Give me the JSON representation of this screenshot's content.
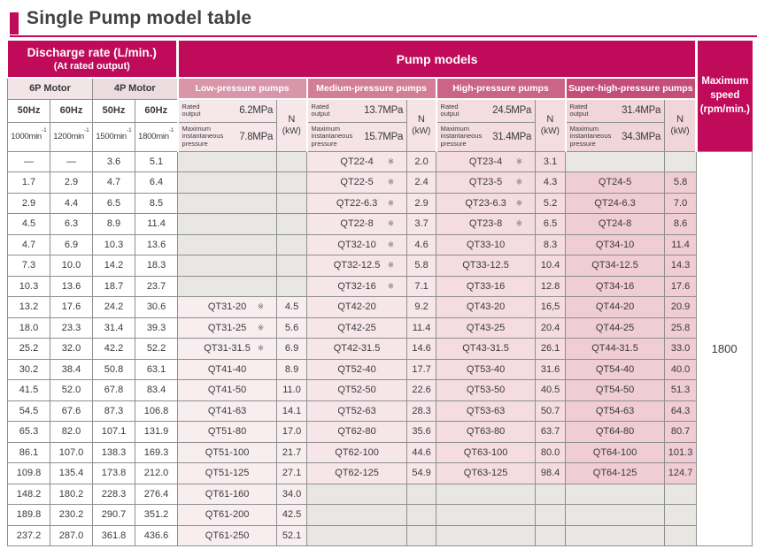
{
  "title": "Single Pump model table",
  "colors": {
    "brand_magenta": "#c00a5a",
    "category_low": "#d995aa",
    "category_medium": "#d37e97",
    "category_high": "#cb6587",
    "category_super": "#c54e79",
    "empty_cell_gray": "#e9e7e4"
  },
  "header": {
    "discharge_title": "Discharge rate (L/min.)",
    "discharge_subtitle": "(At rated output)",
    "pump_models": "Pump models",
    "max_speed": "Maximum\nspeed\n(rpm/min.)",
    "motors": [
      "6P Motor",
      "4P Motor"
    ],
    "freqs": [
      "50Hz",
      "60Hz",
      "50Hz",
      "60Hz"
    ],
    "speeds": [
      "1000min",
      "1200min",
      "1500min",
      "1800min"
    ],
    "sup": "-1",
    "rated_label": "Rated\noutput",
    "max_label": "Maximum\ninstantaneous\npressure",
    "n_label": "N",
    "kw_label": "(kW)",
    "categories": [
      {
        "label": "Low-pressure pumps",
        "rated": "6.2MPa",
        "max": "7.8MPa"
      },
      {
        "label": "Medium-pressure pumps",
        "rated": "13.7MPa",
        "max": "15.7MPa"
      },
      {
        "label": "High-pressure pumps",
        "rated": "24.5MPa",
        "max": "31.4MPa"
      },
      {
        "label": "Super-high-pressure pumps",
        "rated": "31.4MPa",
        "max": "34.3MPa"
      }
    ]
  },
  "max_speed_value": "1800",
  "rows": [
    {
      "discharge": [
        "—",
        "—",
        "3.6",
        "5.1"
      ],
      "pumps": [
        {
          "model": "",
          "note": "",
          "kw": ""
        },
        {
          "model": "QT22-4",
          "note": "※",
          "kw": "2.0"
        },
        {
          "model": "QT23-4",
          "note": "※",
          "kw": "3.1"
        },
        {
          "model": "",
          "note": "",
          "kw": ""
        }
      ]
    },
    {
      "discharge": [
        "1.7",
        "2.9",
        "4.7",
        "6.4"
      ],
      "pumps": [
        {
          "model": "",
          "note": "",
          "kw": ""
        },
        {
          "model": "QT22-5",
          "note": "※",
          "kw": "2.4"
        },
        {
          "model": "QT23-5",
          "note": "※",
          "kw": "4.3"
        },
        {
          "model": "QT24-5",
          "note": "",
          "kw": "5.8"
        }
      ]
    },
    {
      "discharge": [
        "2.9",
        "4.4",
        "6.5",
        "8.5"
      ],
      "pumps": [
        {
          "model": "",
          "note": "",
          "kw": ""
        },
        {
          "model": "QT22-6.3",
          "note": "※",
          "kw": "2.9"
        },
        {
          "model": "QT23-6.3",
          "note": "※",
          "kw": "5.2"
        },
        {
          "model": "QT24-6.3",
          "note": "",
          "kw": "7.0"
        }
      ]
    },
    {
      "discharge": [
        "4.5",
        "6.3",
        "8.9",
        "11.4"
      ],
      "pumps": [
        {
          "model": "",
          "note": "",
          "kw": ""
        },
        {
          "model": "QT22-8",
          "note": "※",
          "kw": "3.7"
        },
        {
          "model": "QT23-8",
          "note": "※",
          "kw": "6.5"
        },
        {
          "model": "QT24-8",
          "note": "",
          "kw": "8.6"
        }
      ]
    },
    {
      "discharge": [
        "4.7",
        "6.9",
        "10.3",
        "13.6"
      ],
      "pumps": [
        {
          "model": "",
          "note": "",
          "kw": ""
        },
        {
          "model": "QT32-10",
          "note": "※",
          "kw": "4.6"
        },
        {
          "model": "QT33-10",
          "note": "",
          "kw": "8.3"
        },
        {
          "model": "QT34-10",
          "note": "",
          "kw": "11.4"
        }
      ]
    },
    {
      "discharge": [
        "7.3",
        "10.0",
        "14.2",
        "18.3"
      ],
      "pumps": [
        {
          "model": "",
          "note": "",
          "kw": ""
        },
        {
          "model": "QT32-12.5",
          "note": "※",
          "kw": "5.8"
        },
        {
          "model": "QT33-12.5",
          "note": "",
          "kw": "10.4"
        },
        {
          "model": "QT34-12.5",
          "note": "",
          "kw": "14.3"
        }
      ]
    },
    {
      "discharge": [
        "10.3",
        "13.6",
        "18.7",
        "23.7"
      ],
      "pumps": [
        {
          "model": "",
          "note": "",
          "kw": ""
        },
        {
          "model": "QT32-16",
          "note": "※",
          "kw": "7.1"
        },
        {
          "model": "QT33-16",
          "note": "",
          "kw": "12.8"
        },
        {
          "model": "QT34-16",
          "note": "",
          "kw": "17.6"
        }
      ]
    },
    {
      "discharge": [
        "13.2",
        "17.6",
        "24.2",
        "30.6"
      ],
      "pumps": [
        {
          "model": "QT31-20",
          "note": "※",
          "kw": "4.5"
        },
        {
          "model": "QT42-20",
          "note": "",
          "kw": "9.2"
        },
        {
          "model": "QT43-20",
          "note": "",
          "kw": "16,5"
        },
        {
          "model": "QT44-20",
          "note": "",
          "kw": "20.9"
        }
      ]
    },
    {
      "discharge": [
        "18.0",
        "23.3",
        "31.4",
        "39.3"
      ],
      "pumps": [
        {
          "model": "QT31-25",
          "note": "※",
          "kw": "5.6"
        },
        {
          "model": "QT42-25",
          "note": "",
          "kw": "11.4"
        },
        {
          "model": "QT43-25",
          "note": "",
          "kw": "20.4"
        },
        {
          "model": "QT44-25",
          "note": "",
          "kw": "25.8"
        }
      ]
    },
    {
      "discharge": [
        "25.2",
        "32.0",
        "42.2",
        "52.2"
      ],
      "pumps": [
        {
          "model": "QT31-31.5",
          "note": "※",
          "kw": "6.9"
        },
        {
          "model": "QT42-31.5",
          "note": "",
          "kw": "14.6"
        },
        {
          "model": "QT43-31.5",
          "note": "",
          "kw": "26.1"
        },
        {
          "model": "QT44-31.5",
          "note": "",
          "kw": "33.0"
        }
      ]
    },
    {
      "discharge": [
        "30.2",
        "38.4",
        "50.8",
        "63.1"
      ],
      "pumps": [
        {
          "model": "QT41-40",
          "note": "",
          "kw": "8.9"
        },
        {
          "model": "QT52-40",
          "note": "",
          "kw": "17.7"
        },
        {
          "model": "QT53-40",
          "note": "",
          "kw": "31.6"
        },
        {
          "model": "QT54-40",
          "note": "",
          "kw": "40.0"
        }
      ]
    },
    {
      "discharge": [
        "41.5",
        "52.0",
        "67.8",
        "83.4"
      ],
      "pumps": [
        {
          "model": "QT41-50",
          "note": "",
          "kw": "11.0"
        },
        {
          "model": "QT52-50",
          "note": "",
          "kw": "22.6"
        },
        {
          "model": "QT53-50",
          "note": "",
          "kw": "40.5"
        },
        {
          "model": "QT54-50",
          "note": "",
          "kw": "51.3"
        }
      ]
    },
    {
      "discharge": [
        "54.5",
        "67.6",
        "87.3",
        "106.8"
      ],
      "pumps": [
        {
          "model": "QT41-63",
          "note": "",
          "kw": "14.1"
        },
        {
          "model": "QT52-63",
          "note": "",
          "kw": "28.3"
        },
        {
          "model": "QT53-63",
          "note": "",
          "kw": "50.7"
        },
        {
          "model": "QT54-63",
          "note": "",
          "kw": "64.3"
        }
      ]
    },
    {
      "discharge": [
        "65.3",
        "82.0",
        "107.1",
        "131.9"
      ],
      "pumps": [
        {
          "model": "QT51-80",
          "note": "",
          "kw": "17.0"
        },
        {
          "model": "QT62-80",
          "note": "",
          "kw": "35.6"
        },
        {
          "model": "QT63-80",
          "note": "",
          "kw": "63.7"
        },
        {
          "model": "QT64-80",
          "note": "",
          "kw": "80.7"
        }
      ]
    },
    {
      "discharge": [
        "86.1",
        "107.0",
        "138.3",
        "169.3"
      ],
      "pumps": [
        {
          "model": "QT51-100",
          "note": "",
          "kw": "21.7"
        },
        {
          "model": "QT62-100",
          "note": "",
          "kw": "44.6"
        },
        {
          "model": "QT63-100",
          "note": "",
          "kw": "80.0"
        },
        {
          "model": "QT64-100",
          "note": "",
          "kw": "101.3"
        }
      ]
    },
    {
      "discharge": [
        "109.8",
        "135.4",
        "173.8",
        "212.0"
      ],
      "pumps": [
        {
          "model": "QT51-125",
          "note": "",
          "kw": "27.1"
        },
        {
          "model": "QT62-125",
          "note": "",
          "kw": "54.9"
        },
        {
          "model": "QT63-125",
          "note": "",
          "kw": "98.4"
        },
        {
          "model": "QT64-125",
          "note": "",
          "kw": "124.7"
        }
      ]
    },
    {
      "discharge": [
        "148.2",
        "180.2",
        "228.3",
        "276.4"
      ],
      "pumps": [
        {
          "model": "QT61-160",
          "note": "",
          "kw": "34.0"
        },
        {
          "model": "",
          "note": "",
          "kw": ""
        },
        {
          "model": "",
          "note": "",
          "kw": ""
        },
        {
          "model": "",
          "note": "",
          "kw": ""
        }
      ]
    },
    {
      "discharge": [
        "189.8",
        "230.2",
        "290.7",
        "351.2"
      ],
      "pumps": [
        {
          "model": "QT61-200",
          "note": "",
          "kw": "42.5"
        },
        {
          "model": "",
          "note": "",
          "kw": ""
        },
        {
          "model": "",
          "note": "",
          "kw": ""
        },
        {
          "model": "",
          "note": "",
          "kw": ""
        }
      ]
    },
    {
      "discharge": [
        "237.2",
        "287.0",
        "361.8",
        "436.6"
      ],
      "pumps": [
        {
          "model": "QT61-250",
          "note": "",
          "kw": "52.1"
        },
        {
          "model": "",
          "note": "",
          "kw": ""
        },
        {
          "model": "",
          "note": "",
          "kw": ""
        },
        {
          "model": "",
          "note": "",
          "kw": ""
        }
      ]
    }
  ]
}
